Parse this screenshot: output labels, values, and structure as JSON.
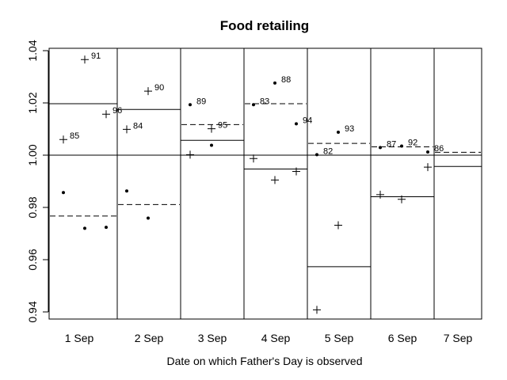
{
  "chart_data": {
    "type": "scatter",
    "title": "Food retailing",
    "xlabel": "Date on which Father's Day is observed",
    "ylabel": "",
    "ylim": [
      0.94,
      1.04
    ],
    "yticks": [
      "0.94",
      "0.96",
      "0.98",
      "1.00",
      "1.02",
      "1.04"
    ],
    "reference_line": 1.0,
    "categories": [
      "1 Sep",
      "2 Sep",
      "3 Sep",
      "4 Sep",
      "5 Sep",
      "6 Sep",
      "7 Sep"
    ],
    "solid_levels": [
      1.0197,
      1.0175,
      1.0057,
      0.9947,
      0.9573,
      0.9841,
      0.9957
    ],
    "dashed_levels": [
      0.9767,
      0.9811,
      1.0117,
      1.0197,
      1.0045,
      1.0032,
      1.0011
    ],
    "points": [
      {
        "cat": 0,
        "slot": 0,
        "marker": "plus",
        "y": 1.006,
        "label": "85"
      },
      {
        "cat": 0,
        "slot": 1,
        "marker": "plus",
        "y": 1.0366,
        "label": "91"
      },
      {
        "cat": 0,
        "slot": 2,
        "marker": "plus",
        "y": 1.0157,
        "label": "96"
      },
      {
        "cat": 0,
        "slot": 0,
        "marker": "dot",
        "y": 0.9857,
        "label": ""
      },
      {
        "cat": 0,
        "slot": 1,
        "marker": "dot",
        "y": 0.972,
        "label": ""
      },
      {
        "cat": 0,
        "slot": 2,
        "marker": "dot",
        "y": 0.9724,
        "label": ""
      },
      {
        "cat": 1,
        "slot": 0,
        "marker": "plus",
        "y": 1.0099,
        "label": "84"
      },
      {
        "cat": 1,
        "slot": 1,
        "marker": "plus",
        "y": 1.0245,
        "label": "90"
      },
      {
        "cat": 1,
        "slot": 0,
        "marker": "dot",
        "y": 0.9863,
        "label": ""
      },
      {
        "cat": 1,
        "slot": 1,
        "marker": "dot",
        "y": 0.9759,
        "label": ""
      },
      {
        "cat": 2,
        "slot": 0,
        "marker": "dot",
        "y": 1.0193,
        "label": "89"
      },
      {
        "cat": 2,
        "slot": 1,
        "marker": "plus",
        "y": 1.0101,
        "label": "95"
      },
      {
        "cat": 2,
        "slot": 0,
        "marker": "plus",
        "y": 1.0002,
        "label": ""
      },
      {
        "cat": 2,
        "slot": 1,
        "marker": "dot",
        "y": 1.0038,
        "label": ""
      },
      {
        "cat": 3,
        "slot": 0,
        "marker": "dot",
        "y": 1.0193,
        "label": "83"
      },
      {
        "cat": 3,
        "slot": 1,
        "marker": "dot",
        "y": 1.0276,
        "label": "88"
      },
      {
        "cat": 3,
        "slot": 2,
        "marker": "dot",
        "y": 1.012,
        "label": "94"
      },
      {
        "cat": 3,
        "slot": 0,
        "marker": "plus",
        "y": 0.9987,
        "label": ""
      },
      {
        "cat": 3,
        "slot": 1,
        "marker": "plus",
        "y": 0.9905,
        "label": ""
      },
      {
        "cat": 3,
        "slot": 2,
        "marker": "plus",
        "y": 0.9938,
        "label": ""
      },
      {
        "cat": 4,
        "slot": 0,
        "marker": "dot",
        "y": 1.0002,
        "label": "82"
      },
      {
        "cat": 4,
        "slot": 1,
        "marker": "dot",
        "y": 1.0088,
        "label": "93"
      },
      {
        "cat": 4,
        "slot": 1,
        "marker": "plus",
        "y": 0.9732,
        "label": ""
      },
      {
        "cat": 4,
        "slot": 0,
        "marker": "plus",
        "y": 0.9408,
        "label": ""
      },
      {
        "cat": 5,
        "slot": 0,
        "marker": "dot",
        "y": 1.0029,
        "label": "87"
      },
      {
        "cat": 5,
        "slot": 1,
        "marker": "dot",
        "y": 1.0035,
        "label": "92"
      },
      {
        "cat": 5,
        "slot": 0,
        "marker": "plus",
        "y": 0.9849,
        "label": ""
      },
      {
        "cat": 5,
        "slot": 1,
        "marker": "plus",
        "y": 0.9831,
        "label": ""
      },
      {
        "cat": 6,
        "slot": 0,
        "marker": "dot",
        "y": 1.0012,
        "label": "86"
      },
      {
        "cat": 6,
        "slot": 0,
        "marker": "plus",
        "y": 0.9954,
        "label": ""
      }
    ],
    "grid": false,
    "legend": "none"
  }
}
